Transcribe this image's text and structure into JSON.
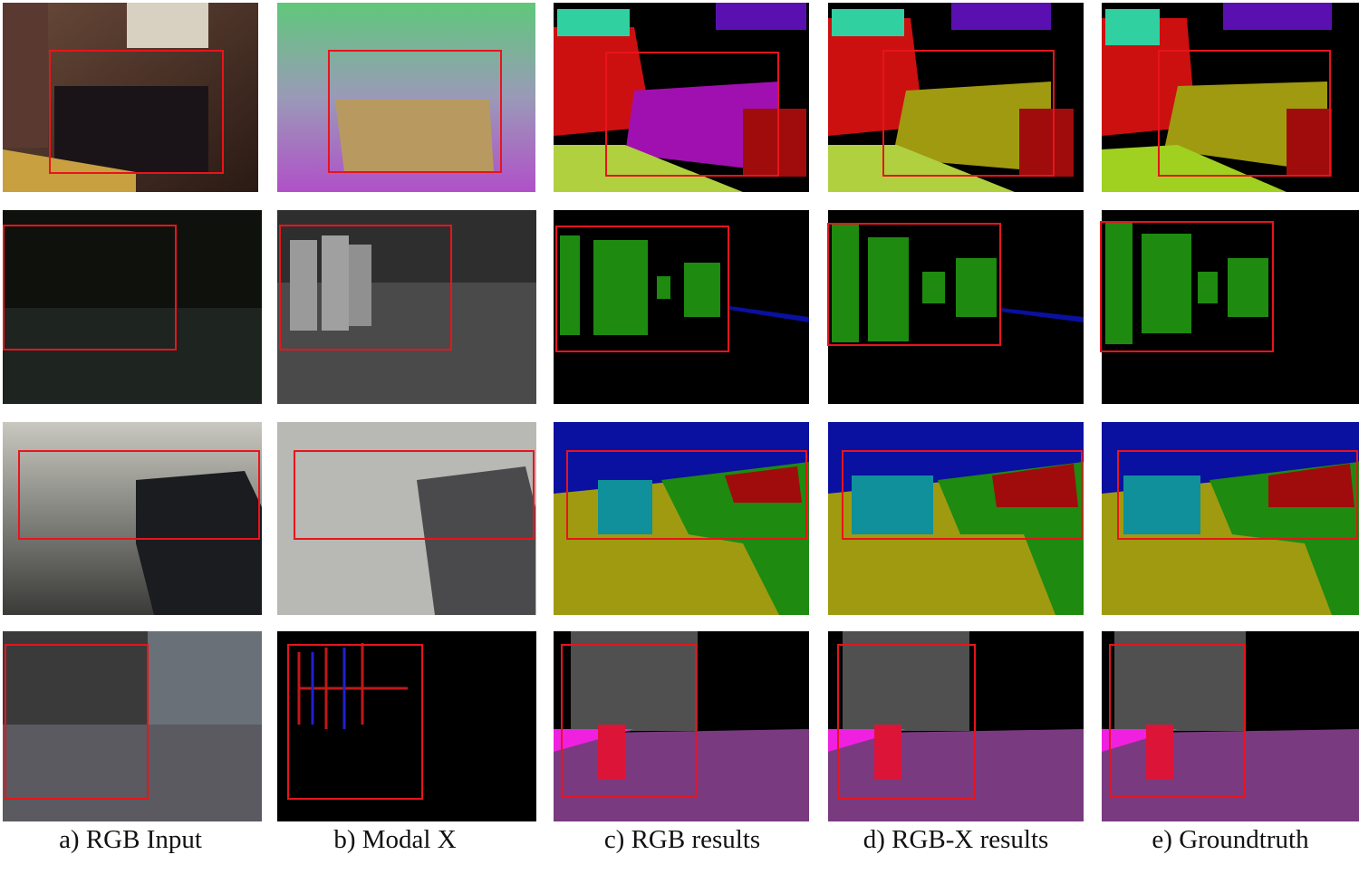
{
  "captions": [
    "a) RGB Input",
    "b) Modal X",
    "c) RGB results",
    "d) RGB-X results",
    "e) Groundtruth"
  ]
}
